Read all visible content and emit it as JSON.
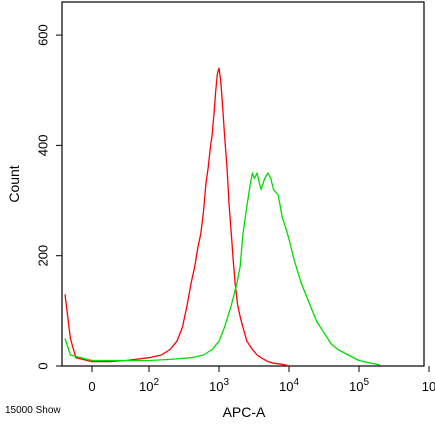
{
  "chart_data": {
    "type": "histogram",
    "title": "",
    "xlabel": "APC-A",
    "ylabel": "Count",
    "x_scale": "biexponential",
    "xlim": [
      -50,
      1000000
    ],
    "ylim": [
      0,
      660
    ],
    "x_ticks": [
      {
        "value": 0,
        "label": "0"
      },
      {
        "value": 100,
        "label": "10",
        "exp": "2"
      },
      {
        "value": 1000,
        "label": "10",
        "exp": "3"
      },
      {
        "value": 10000,
        "label": "10",
        "exp": "4"
      },
      {
        "value": 100000,
        "label": "10",
        "exp": "5"
      },
      {
        "value": 1000000,
        "label": "10",
        "exp": ""
      }
    ],
    "y_ticks": [
      {
        "value": 0,
        "label": "0"
      },
      {
        "value": 200,
        "label": "200"
      },
      {
        "value": 400,
        "label": "400"
      },
      {
        "value": 600,
        "label": "600"
      }
    ],
    "series": [
      {
        "color": "#ff0000",
        "x": [
          -50,
          -40,
          -30,
          0,
          30,
          60,
          100,
          150,
          200,
          250,
          300,
          350,
          400,
          450,
          500,
          550,
          600,
          650,
          700,
          750,
          800,
          850,
          900,
          950,
          1000,
          1050,
          1100,
          1200,
          1300,
          1400,
          1500,
          1600,
          1700,
          1850,
          2000,
          2200,
          2500,
          3000,
          3500,
          4000,
          5000,
          6000,
          8000,
          10000
        ],
        "y": [
          130,
          50,
          15,
          8,
          8,
          10,
          15,
          20,
          30,
          45,
          70,
          110,
          150,
          180,
          215,
          240,
          280,
          330,
          360,
          395,
          420,
          460,
          500,
          530,
          540,
          520,
          490,
          420,
          360,
          290,
          240,
          190,
          150,
          110,
          90,
          70,
          45,
          30,
          20,
          15,
          8,
          5,
          3,
          0
        ]
      },
      {
        "color": "#00dd00",
        "x": [
          -50,
          -40,
          0,
          100,
          200,
          400,
          600,
          800,
          1000,
          1200,
          1500,
          1800,
          2000,
          2200,
          2500,
          2800,
          3000,
          3200,
          3500,
          3800,
          4000,
          4500,
          5000,
          5500,
          6000,
          7000,
          8000,
          9000,
          10000,
          12000,
          15000,
          20000,
          25000,
          30000,
          40000,
          50000,
          70000,
          100000,
          150000,
          200000
        ],
        "y": [
          50,
          20,
          10,
          10,
          12,
          15,
          20,
          30,
          45,
          70,
          110,
          150,
          180,
          240,
          290,
          330,
          350,
          340,
          350,
          330,
          320,
          340,
          350,
          340,
          320,
          310,
          270,
          250,
          230,
          190,
          150,
          110,
          80,
          65,
          40,
          30,
          20,
          10,
          5,
          2
        ]
      }
    ],
    "grid": false,
    "legend": "none"
  },
  "footer_text": "15000 Show"
}
